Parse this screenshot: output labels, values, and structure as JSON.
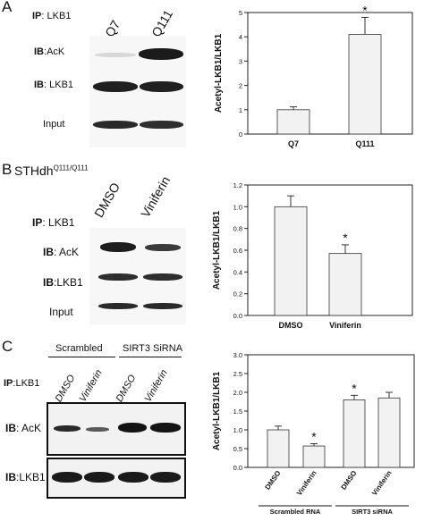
{
  "panels": {
    "A": {
      "letter": "A",
      "ip_label": "IP",
      "ip_target": "LKB1",
      "lanes": [
        "Q7",
        "Q111"
      ],
      "rows": [
        {
          "ib": "IB",
          "target": "AcK"
        },
        {
          "ib": "IB",
          "target": "LKB1"
        },
        {
          "ib": "",
          "target": "Input"
        }
      ]
    },
    "B": {
      "letter": "B",
      "cell_line": "STHdh",
      "cell_line_sup": "Q111/Q111",
      "ip_label": "IP",
      "ip_target": "LKB1",
      "lanes": [
        "DMSO",
        "Viniferin"
      ],
      "rows": [
        {
          "ib": "IB",
          "target": "AcK"
        },
        {
          "ib": "IB",
          "target": "LKB1"
        },
        {
          "ib": "",
          "target": "Input"
        }
      ]
    },
    "C": {
      "letter": "C",
      "groups": [
        "Scrambled",
        "SIRT3 SiRNA"
      ],
      "ip_label": "IP",
      "ip_target": "LKB1",
      "lanes": [
        "DMSO",
        "Viniferin",
        "DMSO",
        "Viniferin"
      ],
      "rows": [
        {
          "ib": "IB",
          "target": "AcK"
        },
        {
          "ib": "IB",
          "target": "LKB1"
        }
      ]
    }
  },
  "chart_data": [
    {
      "type": "bar",
      "categories": [
        "Q7",
        "Q111"
      ],
      "values": [
        1.0,
        4.1
      ],
      "errors": [
        0.12,
        0.7
      ],
      "significance": [
        "",
        "*"
      ],
      "ylabel": "Acetyl-LKB1/LKB1",
      "ylim": [
        0,
        5
      ],
      "yticks": [
        0,
        1,
        2,
        3,
        4,
        5
      ],
      "grid": false,
      "bar_color": "#f2f2f2"
    },
    {
      "type": "bar",
      "categories": [
        "DMSO",
        "Viniferin"
      ],
      "values": [
        1.0,
        0.57
      ],
      "errors": [
        0.1,
        0.08
      ],
      "significance": [
        "",
        "*"
      ],
      "ylabel": "Acetyl-LKB1/LKB1",
      "ylim": [
        0,
        1.2
      ],
      "yticks": [
        "0.0",
        "0.2",
        "0.4",
        "0.6",
        "0.8",
        "1.0",
        "1.2"
      ],
      "grid": false,
      "bar_color": "#f2f2f2"
    },
    {
      "type": "bar",
      "categories": [
        "DMSO",
        "Viniferin",
        "DMSO",
        "Viniferin"
      ],
      "groups": [
        "Scrambled RNA",
        "SIRT3 siRNA"
      ],
      "values": [
        1.0,
        0.57,
        1.8,
        1.85
      ],
      "errors": [
        0.1,
        0.06,
        0.12,
        0.15
      ],
      "significance": [
        "",
        "*",
        "*",
        ""
      ],
      "ylabel": "Acetyl-LKB1/LKB1",
      "ylim": [
        0,
        3.0
      ],
      "yticks": [
        "0.0",
        "0.5",
        "1.0",
        "1.5",
        "2.0",
        "2.5",
        "3.0"
      ],
      "grid": false,
      "bar_color": "#f2f2f2"
    }
  ]
}
